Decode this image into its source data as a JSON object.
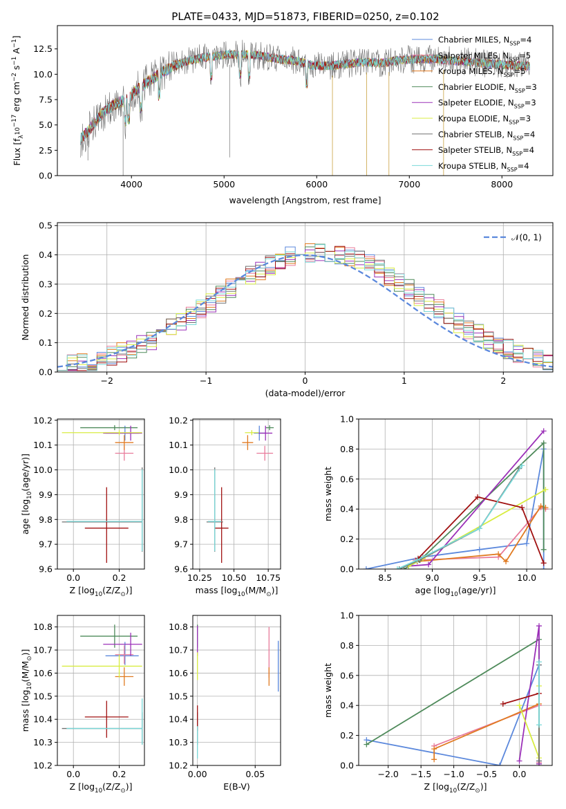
{
  "title": "PLATE=0433, MJD=51873, FIBERID=0250, z=0.102",
  "colors": {
    "chabrier_miles": "#5b88dc",
    "salpeter_miles": "#e87a9a",
    "kroupa_miles": "#e07a20",
    "chabrier_elodie": "#4e8a5a",
    "salpeter_elodie": "#9b30b8",
    "kroupa_elodie": "#d8ec40",
    "chabrier_stelib": "#707070",
    "salpeter_stelib": "#a01010",
    "kroupa_stelib": "#78d8d8"
  },
  "chart_data": [
    {
      "type": "line",
      "title": "PLATE=0433, MJD=51873, FIBERID=0250, z=0.102",
      "xlabel": "wavelength [Angstrom, rest frame]",
      "ylabel_parts": [
        "Flux [f",
        "λ",
        "10",
        "−17",
        " erg cm",
        "−2",
        " s",
        "−1",
        " A",
        "−1",
        "]"
      ],
      "xlim": [
        3200,
        8550
      ],
      "ylim": [
        0,
        14.8
      ],
      "xticks": [
        "4000",
        "5000",
        "6000",
        "7000",
        "8000"
      ],
      "yticks": [
        "0.0",
        "2.5",
        "5.0",
        "7.5",
        "10.0",
        "12.5"
      ],
      "grid": false,
      "legend_position": "right",
      "legend": [
        {
          "base": "Chabrier MILES, N",
          "sub": "SSP",
          "tail": "=4"
        },
        {
          "base": "Salpeter MILES, N",
          "sub": "SSP",
          "tail": "=5"
        },
        {
          "base": "Kroupa MILES, N",
          "sub": "SSP",
          "tail": "=5"
        },
        {
          "base": "Chabrier ELODIE, N",
          "sub": "SSP",
          "tail": "=3"
        },
        {
          "base": "Salpeter ELODIE, N",
          "sub": "SSP",
          "tail": "=3"
        },
        {
          "base": "Kroupa ELODIE, N",
          "sub": "SSP",
          "tail": "=3"
        },
        {
          "base": "Chabrier STELIB, N",
          "sub": "SSP",
          "tail": "=4"
        },
        {
          "base": "Salpeter STELIB, N",
          "sub": "SSP",
          "tail": "=4"
        },
        {
          "base": "Kroupa STELIB, N",
          "sub": "SSP",
          "tail": "=4"
        }
      ],
      "continuum": {
        "x": [
          3450,
          3550,
          3650,
          3750,
          3850,
          3950,
          4050,
          4150,
          4300,
          4450,
          4600,
          4800,
          5000,
          5200,
          5400,
          5600,
          5800,
          5950,
          6100,
          6300,
          6500,
          6700,
          6900,
          7100,
          7300,
          7500,
          7700,
          7900,
          8100,
          8300
        ],
        "y": [
          3.6,
          4.6,
          5.8,
          6.6,
          7.2,
          7.4,
          8.4,
          9.1,
          10.0,
          10.8,
          11.3,
          11.7,
          11.9,
          12.0,
          11.8,
          11.5,
          11.3,
          10.9,
          10.8,
          11.0,
          11.2,
          11.1,
          11.4,
          11.5,
          11.5,
          11.3,
          11.2,
          11.0,
          10.9,
          10.8
        ]
      }
    },
    {
      "type": "histogram",
      "xlabel": "(data-model)/error",
      "ylabel": "Normed distribution",
      "xlim": [
        -2.5,
        2.5
      ],
      "ylim": [
        0,
        0.51
      ],
      "xticks": [
        "−2",
        "−1",
        "0",
        "1",
        "2"
      ],
      "yticks": [
        "0.0",
        "0.1",
        "0.2",
        "0.3",
        "0.4",
        "0.5"
      ],
      "grid": true,
      "legend_position": "top-right",
      "legend": [
        "𝒩(0, 1)"
      ],
      "bin_width": 0.1,
      "reference": {
        "name": "𝒩(0, 1)",
        "mean": 0,
        "sigma": 1
      },
      "series_x_start": -2.5
    },
    {
      "type": "scatter",
      "xlabel_parts": [
        "Z [log",
        "10",
        "(Z/Z",
        "⊙",
        ")]"
      ],
      "ylabel_parts": [
        "age  [log",
        "10",
        "(age/yr)]"
      ],
      "xlim": [
        -0.07,
        0.31
      ],
      "ylim": [
        9.6,
        10.205
      ],
      "xticks": [
        "0.0",
        "0.2"
      ],
      "yticks": [
        "9.6",
        "9.7",
        "9.8",
        "9.9",
        "10.0",
        "10.1",
        "10.2"
      ],
      "grid": true,
      "points": [
        {
          "x": 0.225,
          "y": 10.148,
          "xerr": [
            0.085,
            0.06
          ],
          "yerr": [
            0.03,
            0.03
          ],
          "color": "chabrier_miles"
        },
        {
          "x": 0.222,
          "y": 10.067,
          "xerr": [
            0.04,
            0.04
          ],
          "yerr": [
            0.03,
            0.03
          ],
          "color": "salpeter_miles"
        },
        {
          "x": 0.222,
          "y": 10.11,
          "xerr": [
            0.04,
            0.04
          ],
          "yerr": [
            0.03,
            0.03
          ],
          "color": "kroupa_miles"
        },
        {
          "x": 0.18,
          "y": 10.17,
          "xerr": [
            0.15,
            0.1
          ],
          "yerr": [
            0.01,
            0.01
          ],
          "color": "chabrier_elodie"
        },
        {
          "x": 0.25,
          "y": 10.148,
          "xerr": [
            0.12,
            0.05
          ],
          "yerr": [
            0.03,
            0.03
          ],
          "color": "salpeter_elodie"
        },
        {
          "x": 0.2,
          "y": 10.15,
          "xerr": [
            0.25,
            0.1
          ],
          "yerr": [
            0.01,
            0.01
          ],
          "color": "kroupa_elodie"
        },
        {
          "x": 0.3,
          "y": 9.79,
          "xerr": [
            0.35,
            0.0
          ],
          "yerr": [
            0.12,
            0.22
          ],
          "color": "chabrier_stelib"
        },
        {
          "x": 0.145,
          "y": 9.765,
          "xerr": [
            0.095,
            0.095
          ],
          "yerr": [
            0.14,
            0.165
          ],
          "color": "salpeter_stelib"
        },
        {
          "x": 0.3,
          "y": 9.792,
          "xerr": [
            0.33,
            0.0
          ],
          "yerr": [
            0.12,
            0.21
          ],
          "color": "kroupa_stelib"
        }
      ]
    },
    {
      "type": "scatter",
      "xlabel_parts": [
        "mass [log",
        "10",
        "(M/M",
        "⊙",
        ")]"
      ],
      "xlim": [
        10.2,
        10.84
      ],
      "ylim": [
        9.6,
        10.205
      ],
      "xticks": [
        "10.25",
        "10.50",
        "10.75"
      ],
      "yticks": [
        "9.6",
        "9.7",
        "9.8",
        "9.9",
        "10.0",
        "10.1",
        "10.2"
      ],
      "grid": true,
      "points": [
        {
          "x": 10.685,
          "y": 10.148,
          "xerr": [
            0.04,
            0.05
          ],
          "yerr": [
            0.03,
            0.03
          ],
          "color": "chabrier_miles"
        },
        {
          "x": 10.725,
          "y": 10.067,
          "xerr": [
            0.06,
            0.06
          ],
          "yerr": [
            0.03,
            0.03
          ],
          "color": "salpeter_miles"
        },
        {
          "x": 10.6,
          "y": 10.11,
          "xerr": [
            0.04,
            0.04
          ],
          "yerr": [
            0.03,
            0.03
          ],
          "color": "kroupa_miles"
        },
        {
          "x": 10.76,
          "y": 10.17,
          "xerr": [
            0.03,
            0.03
          ],
          "yerr": [
            0.01,
            0.01
          ],
          "color": "chabrier_elodie"
        },
        {
          "x": 10.73,
          "y": 10.148,
          "xerr": [
            0.05,
            0.05
          ],
          "yerr": [
            0.03,
            0.03
          ],
          "color": "salpeter_elodie"
        },
        {
          "x": 10.63,
          "y": 10.15,
          "xerr": [
            0.05,
            0.05
          ],
          "yerr": [
            0.01,
            0.01
          ],
          "color": "kroupa_elodie"
        },
        {
          "x": 10.36,
          "y": 9.79,
          "xerr": [
            0.06,
            0.06
          ],
          "yerr": [
            0.12,
            0.22
          ],
          "color": "chabrier_stelib"
        },
        {
          "x": 10.41,
          "y": 9.765,
          "xerr": [
            0.05,
            0.05
          ],
          "yerr": [
            0.14,
            0.165
          ],
          "color": "salpeter_stelib"
        },
        {
          "x": 10.36,
          "y": 9.792,
          "xerr": [
            0.05,
            0.05
          ],
          "yerr": [
            0.12,
            0.21
          ],
          "color": "kroupa_stelib"
        }
      ]
    },
    {
      "type": "line",
      "xlabel_parts": [
        "age  [log",
        "10",
        "(age/yr)]"
      ],
      "ylabel": "mass weight",
      "xlim": [
        8.22,
        10.27
      ],
      "ylim": [
        0,
        1.0
      ],
      "xticks": [
        "8.5",
        "9.0",
        "9.5",
        "10.0"
      ],
      "yticks": [
        "0.0",
        "0.2",
        "0.4",
        "0.6",
        "0.8",
        "1.0"
      ],
      "grid": true,
      "series": [
        {
          "color": "chabrier_miles",
          "x": [
            8.3,
            8.9,
            9.5,
            10.0,
            10.18,
            10.18
          ],
          "y": [
            0.0,
            0.08,
            0.13,
            0.17,
            0.8,
            0.0
          ]
        },
        {
          "color": "salpeter_miles",
          "x": [
            8.82,
            9.7,
            10.15,
            10.2
          ],
          "y": [
            0.06,
            0.08,
            0.41,
            0.4
          ]
        },
        {
          "color": "kroupa_miles",
          "x": [
            8.84,
            9.7,
            9.78,
            10.15,
            10.2
          ],
          "y": [
            0.05,
            0.1,
            0.05,
            0.42,
            0.41
          ]
        },
        {
          "color": "chabrier_elodie",
          "x": [
            8.7,
            8.87,
            10.18,
            10.18
          ],
          "y": [
            0.0,
            0.06,
            0.84,
            0.13
          ]
        },
        {
          "color": "salpeter_elodie",
          "x": [
            8.75,
            8.96,
            10.18
          ],
          "y": [
            0.02,
            0.03,
            0.92
          ]
        },
        {
          "color": "kroupa_elodie",
          "x": [
            8.75,
            8.9,
            10.2
          ],
          "y": [
            0.02,
            0.07,
            0.53
          ]
        },
        {
          "color": "chabrier_stelib",
          "x": [
            8.65,
            8.86,
            9.5,
            9.92
          ],
          "y": [
            0.0,
            0.06,
            0.27,
            0.67
          ]
        },
        {
          "color": "salpeter_stelib",
          "x": [
            8.85,
            9.48,
            9.95,
            10.18
          ],
          "y": [
            0.07,
            0.48,
            0.41,
            0.04
          ]
        },
        {
          "color": "kroupa_stelib",
          "x": [
            8.63,
            8.84,
            9.5,
            9.95
          ],
          "y": [
            0.0,
            0.06,
            0.27,
            0.69
          ]
        }
      ]
    },
    {
      "type": "scatter",
      "xlabel_parts": [
        "Z [log",
        "10",
        "(Z/Z",
        "⊙",
        ")]"
      ],
      "ylabel_parts": [
        "mass [log",
        "10",
        "(M/M",
        "⊙",
        ")]"
      ],
      "xlim": [
        -0.07,
        0.31
      ],
      "ylim": [
        10.2,
        10.85
      ],
      "xticks": [
        "0.0",
        "0.2"
      ],
      "yticks": [
        "10.2",
        "10.3",
        "10.4",
        "10.5",
        "10.6",
        "10.7",
        "10.8"
      ],
      "grid": true,
      "points": [
        {
          "x": 0.225,
          "y": 10.675,
          "xerr": [
            0.085,
            0.06
          ],
          "yerr": [
            0.04,
            0.06
          ],
          "color": "chabrier_miles"
        },
        {
          "x": 0.222,
          "y": 10.68,
          "xerr": [
            0.04,
            0.04
          ],
          "yerr": [
            0.04,
            0.04
          ],
          "color": "salpeter_miles"
        },
        {
          "x": 0.222,
          "y": 10.585,
          "xerr": [
            0.04,
            0.04
          ],
          "yerr": [
            0.04,
            0.04
          ],
          "color": "kroupa_miles"
        },
        {
          "x": 0.18,
          "y": 10.76,
          "xerr": [
            0.15,
            0.1
          ],
          "yerr": [
            0.05,
            0.05
          ],
          "color": "chabrier_elodie"
        },
        {
          "x": 0.25,
          "y": 10.725,
          "xerr": [
            0.12,
            0.05
          ],
          "yerr": [
            0.05,
            0.05
          ],
          "color": "salpeter_elodie"
        },
        {
          "x": 0.2,
          "y": 10.63,
          "xerr": [
            0.25,
            0.1
          ],
          "yerr": [
            0.05,
            0.05
          ],
          "color": "kroupa_elodie"
        },
        {
          "x": 0.3,
          "y": 10.36,
          "xerr": [
            0.35,
            0.0
          ],
          "yerr": [
            0.07,
            0.07
          ],
          "color": "chabrier_stelib"
        },
        {
          "x": 0.145,
          "y": 10.41,
          "xerr": [
            0.095,
            0.095
          ],
          "yerr": [
            0.09,
            0.07
          ],
          "color": "salpeter_stelib"
        },
        {
          "x": 0.3,
          "y": 10.36,
          "xerr": [
            0.33,
            0.0
          ],
          "yerr": [
            0.07,
            0.13
          ],
          "color": "kroupa_stelib"
        }
      ]
    },
    {
      "type": "scatter",
      "xlabel": "E(B-V)",
      "xlim": [
        -0.004,
        0.072
      ],
      "ylim": [
        10.2,
        10.85
      ],
      "xticks": [
        "0.00",
        "0.05"
      ],
      "yticks": [
        "10.2",
        "10.3",
        "10.4",
        "10.5",
        "10.6",
        "10.7",
        "10.8"
      ],
      "grid": true,
      "points": [
        {
          "x": 0.07,
          "y": 10.62,
          "xerr": [
            0,
            0
          ],
          "yerr": [
            0.1,
            0.12
          ],
          "color": "chabrier_miles"
        },
        {
          "x": 0.062,
          "y": 10.68,
          "xerr": [
            0,
            0
          ],
          "yerr": [
            0.1,
            0.12
          ],
          "color": "salpeter_miles"
        },
        {
          "x": 0.062,
          "y": 10.585,
          "xerr": [
            0,
            0
          ],
          "yerr": [
            0.04,
            0.04
          ],
          "color": "kroupa_miles"
        },
        {
          "x": 0.0,
          "y": 10.76,
          "xerr": [
            0,
            0
          ],
          "yerr": [
            0.05,
            0.05
          ],
          "color": "chabrier_elodie"
        },
        {
          "x": 0.0,
          "y": 10.725,
          "xerr": [
            0,
            0
          ],
          "yerr": [
            0.05,
            0.08
          ],
          "color": "salpeter_elodie"
        },
        {
          "x": 0.0,
          "y": 10.63,
          "xerr": [
            0,
            0
          ],
          "yerr": [
            0.06,
            0.06
          ],
          "color": "kroupa_elodie"
        },
        {
          "x": 0.0,
          "y": 10.36,
          "xerr": [
            0,
            0
          ],
          "yerr": [
            0.07,
            0.07
          ],
          "color": "chabrier_stelib"
        },
        {
          "x": 0.0,
          "y": 10.41,
          "xerr": [
            0,
            0
          ],
          "yerr": [
            0.06,
            0.05
          ],
          "color": "salpeter_stelib"
        },
        {
          "x": 0.0,
          "y": 10.3,
          "xerr": [
            0,
            0
          ],
          "yerr": [
            0.07,
            0.07
          ],
          "color": "kroupa_stelib"
        }
      ]
    },
    {
      "type": "line",
      "xlabel_parts": [
        "Z [log",
        "10",
        "(Z/Z",
        "⊙",
        ")]"
      ],
      "ylabel": "mass weight",
      "xlim": [
        -2.45,
        0.5
      ],
      "ylim": [
        0,
        1.0
      ],
      "xticks": [
        "−2.0",
        "−1.5",
        "−1.0",
        "−0.5",
        "0.0"
      ],
      "yticks": [
        "0.0",
        "0.2",
        "0.4",
        "0.6",
        "0.8",
        "1.0"
      ],
      "grid": true,
      "series": [
        {
          "color": "chabrier_miles",
          "x": [
            -2.33,
            -0.3,
            0.3,
            0.3
          ],
          "y": [
            0.17,
            0.0,
            0.67,
            0.03
          ]
        },
        {
          "color": "salpeter_miles",
          "x": [
            -1.3,
            0.3,
            0.3
          ],
          "y": [
            0.13,
            0.4,
            0.02
          ]
        },
        {
          "color": "kroupa_miles",
          "x": [
            -1.3,
            -1.3,
            0.3,
            0.3
          ],
          "y": [
            0.04,
            0.11,
            0.41,
            0.01
          ]
        },
        {
          "color": "chabrier_elodie",
          "x": [
            -2.33,
            0.3,
            0.3
          ],
          "y": [
            0.14,
            0.84,
            0.01
          ]
        },
        {
          "color": "salpeter_elodie",
          "x": [
            0.0,
            0.3,
            0.3
          ],
          "y": [
            0.03,
            0.93,
            0.01
          ]
        },
        {
          "color": "kroupa_elodie",
          "x": [
            0.0,
            0.3,
            0.3
          ],
          "y": [
            0.4,
            0.05,
            0.53
          ]
        },
        {
          "color": "chabrier_stelib",
          "x": [
            0.3,
            0.3
          ],
          "y": [
            0.03,
            0.67
          ]
        },
        {
          "color": "salpeter_stelib",
          "x": [
            -0.25,
            0.3
          ],
          "y": [
            0.41,
            0.48
          ]
        },
        {
          "color": "kroupa_stelib",
          "x": [
            0.3,
            0.3
          ],
          "y": [
            0.27,
            0.69
          ]
        }
      ]
    }
  ]
}
